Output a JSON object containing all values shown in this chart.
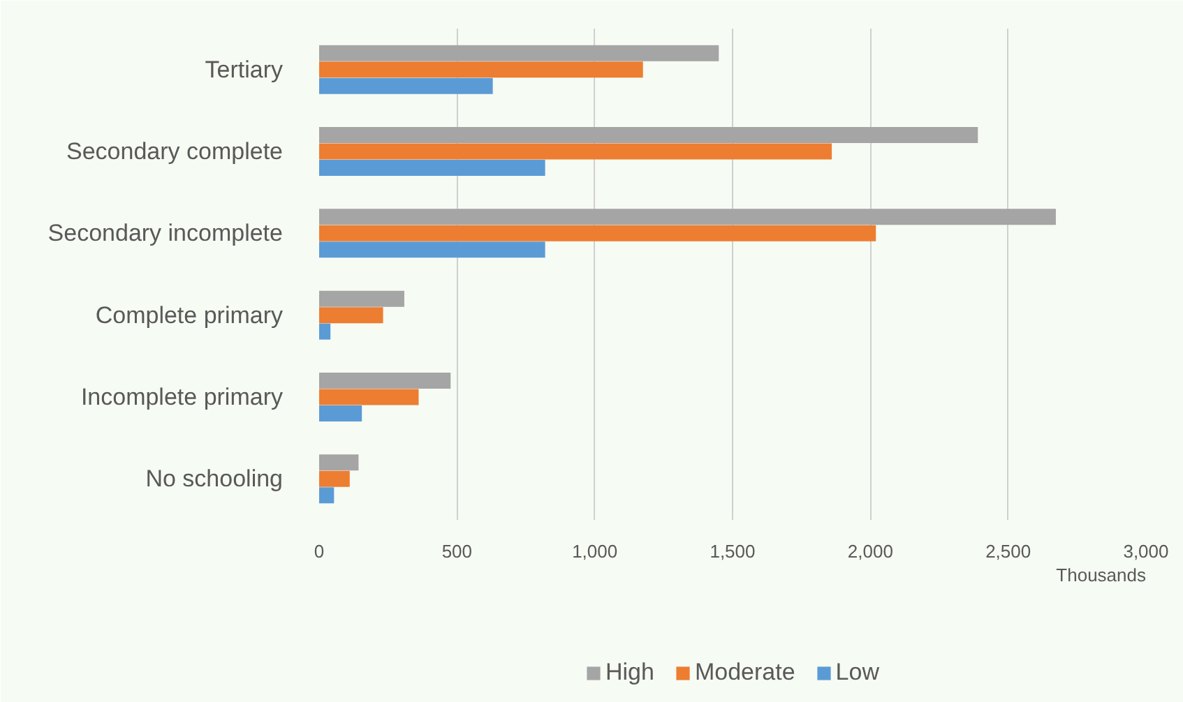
{
  "chart_data": {
    "type": "bar",
    "orientation": "horizontal",
    "categories": [
      "Tertiary",
      "Secondary complete",
      "Secondary incomplete",
      "Complete primary",
      "Incomplete primary",
      "No schooling"
    ],
    "series": [
      {
        "name": "High",
        "color": "#a5a5a5",
        "values": [
          1450,
          2390,
          2673,
          309,
          477,
          143
        ]
      },
      {
        "name": "Moderate",
        "color": "#ed7d31",
        "values": [
          1175,
          1860,
          2020,
          232,
          361,
          111
        ]
      },
      {
        "name": "Low",
        "color": "#5b9bd5",
        "values": [
          630,
          820,
          820,
          41,
          155,
          54
        ]
      }
    ],
    "xlim": [
      0,
      3000
    ],
    "xticks": [
      {
        "value": 0,
        "label": "0"
      },
      {
        "value": 500,
        "label": "500"
      },
      {
        "value": 1000,
        "label": "1,000"
      },
      {
        "value": 1500,
        "label": "1,500"
      },
      {
        "value": 2000,
        "label": "2,000"
      },
      {
        "value": 2500,
        "label": "2,500"
      },
      {
        "value": 3000,
        "label": "3,000"
      }
    ],
    "xlabel": "Thousands",
    "grid": "x",
    "legend": "bottom"
  }
}
